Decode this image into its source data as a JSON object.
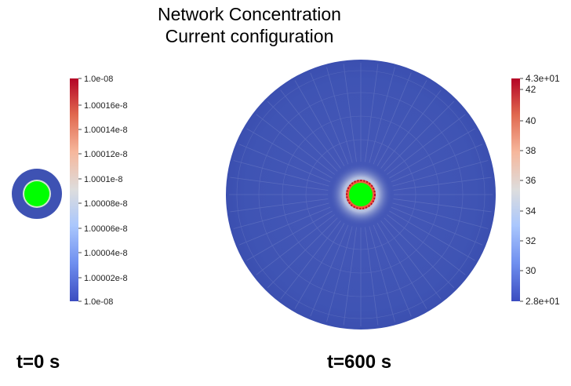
{
  "figure": {
    "title_lines": [
      "Network Concentration",
      "Current configuration"
    ]
  },
  "colors": {
    "field_blue": "#3e52b3",
    "inclusion_green": "#00ff00",
    "colormap": [
      "#3b4cc0",
      "#6f8fef",
      "#aac7fd",
      "#dddddd",
      "#f6b79c",
      "#e0674e",
      "#b40426"
    ]
  },
  "panels": [
    {
      "time_label": "t=0 s",
      "colorbar": {
        "max_label": "1.0e-08",
        "min_label": "1.0e-08",
        "ticks": [
          "1.00016e-8",
          "1.00014e-8",
          "1.00012e-8",
          "1.0001e-8",
          "1.00008e-8",
          "1.00006e-8",
          "1.00004e-8",
          "1.00002e-8"
        ]
      }
    },
    {
      "time_label": "t=600 s",
      "colorbar": {
        "max_label": "4.3e+01",
        "min_label": "2.8e+01",
        "ticks": [
          "42",
          "40",
          "38",
          "36",
          "34",
          "32",
          "30"
        ]
      }
    }
  ]
}
